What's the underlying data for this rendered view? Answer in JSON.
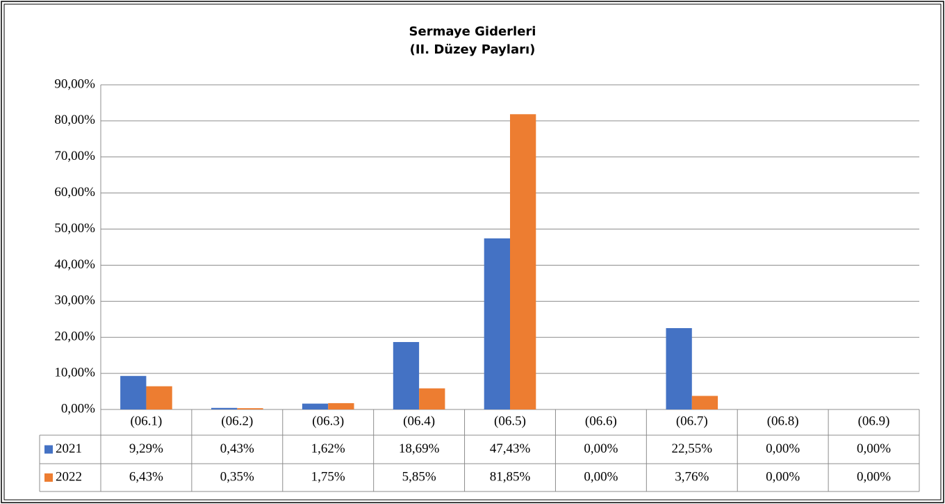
{
  "chart_data": {
    "type": "bar",
    "title": "Sermaye Giderleri",
    "subtitle": "(II. Düzey Payları)",
    "categories": [
      "(06.1)",
      "(06.2)",
      "(06.3)",
      "(06.4)",
      "(06.5)",
      "(06.6)",
      "(06.7)",
      "(06.8)",
      "(06.9)"
    ],
    "series": [
      {
        "name": "2021",
        "color": "#4472c4",
        "values": [
          9.29,
          0.43,
          1.62,
          18.69,
          47.43,
          0,
          22.55,
          0,
          0
        ],
        "value_labels": [
          "9,29%",
          "0,43%",
          "1,62%",
          "18,69%",
          "47,43%",
          "0,00%",
          "22,55%",
          "0,00%",
          "0,00%"
        ]
      },
      {
        "name": "2022",
        "color": "#ed7d31",
        "values": [
          6.43,
          0.35,
          1.75,
          5.85,
          81.85,
          0,
          3.76,
          0,
          0
        ],
        "value_labels": [
          "6,43%",
          "0,35%",
          "1,75%",
          "5,85%",
          "81,85%",
          "0,00%",
          "3,76%",
          "0,00%",
          "0,00%"
        ]
      }
    ],
    "ylim": [
      0,
      90
    ],
    "yticks": [
      {
        "value": 0,
        "label": "0,00%"
      },
      {
        "value": 10,
        "label": "10,00%"
      },
      {
        "value": 20,
        "label": "20,00%"
      },
      {
        "value": 30,
        "label": "30,00%"
      },
      {
        "value": 40,
        "label": "40,00%"
      },
      {
        "value": 50,
        "label": "50,00%"
      },
      {
        "value": 60,
        "label": "60,00%"
      },
      {
        "value": 70,
        "label": "70,00%"
      },
      {
        "value": 80,
        "label": "80,00%"
      },
      {
        "value": 90,
        "label": "90,00%"
      }
    ],
    "grid": true
  }
}
